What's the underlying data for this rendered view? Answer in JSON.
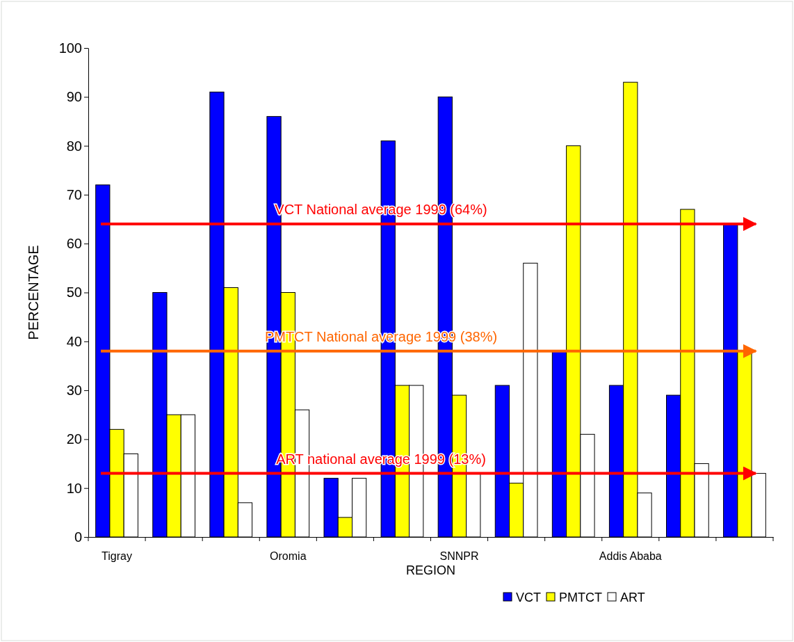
{
  "chart_data": {
    "type": "bar",
    "xlabel": "REGION",
    "ylabel": "PERCENTAGE",
    "categories": [
      "Tigray",
      null,
      null,
      "Oromia",
      null,
      null,
      "SNNPR",
      null,
      null,
      "Addis Ababa",
      null,
      null
    ],
    "series": [
      {
        "name": "VCT",
        "color": "#0000ff",
        "values": [
          72,
          50,
          91,
          86,
          12,
          81,
          90,
          31,
          38,
          31,
          29,
          64
        ]
      },
      {
        "name": "PMTCT",
        "color": "#ffff00",
        "values": [
          22,
          25,
          51,
          50,
          4,
          31,
          29,
          11,
          80,
          93,
          67,
          38
        ]
      },
      {
        "name": "ART",
        "color": "#ffffff",
        "values": [
          17,
          25,
          7,
          26,
          12,
          31,
          13,
          56,
          21,
          9,
          15,
          13
        ]
      }
    ],
    "ylim": [
      0,
      100
    ],
    "yticks": [
      0,
      10,
      20,
      30,
      40,
      50,
      60,
      70,
      80,
      90,
      100
    ],
    "grid": false,
    "legend": "bottom",
    "ref_lines": [
      {
        "axis": "y",
        "value": 64,
        "label": "VCT National average 1999 (64%)",
        "color": "#ff0000"
      },
      {
        "axis": "y",
        "value": 38,
        "label": "PMTCT National average 1999 (38%)",
        "color": "#ff6600"
      },
      {
        "axis": "y",
        "value": 13,
        "label": "ART national average 1999 (13%)",
        "color": "#ff0000"
      }
    ]
  }
}
